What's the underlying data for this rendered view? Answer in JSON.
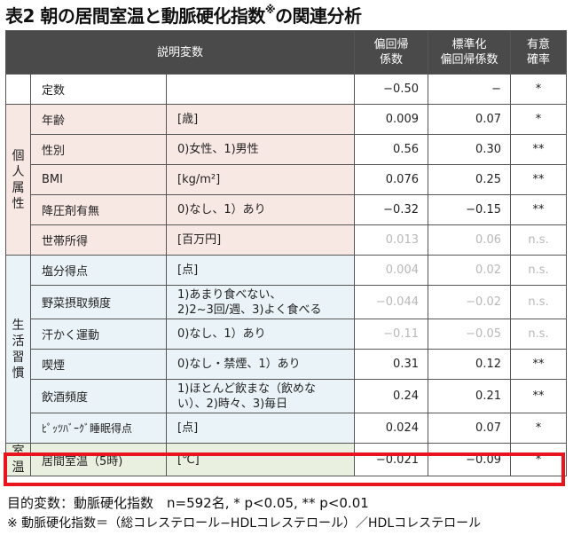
{
  "title": {
    "main": "表2 朝の居間室温と動脈硬化指数",
    "mark": "※",
    "suffix": "の関連分析"
  },
  "header": {
    "desc": "説明変数",
    "coef": [
      "偏回帰",
      "係数"
    ],
    "std": [
      "標準化",
      "偏回帰係数"
    ],
    "sig": [
      "有意",
      "確率"
    ]
  },
  "groups": {
    "individual": "個人属性",
    "lifestyle": "生活習慣",
    "room": "室温"
  },
  "rows": [
    {
      "name": "定数",
      "unit": "",
      "coef": "−0.50",
      "std": "−",
      "sig": "*"
    },
    {
      "name": "年齢",
      "unit": "[歳]",
      "coef": "0.009",
      "std": "0.07",
      "sig": "*"
    },
    {
      "name": "性別",
      "unit": "0)女性、1)男性",
      "coef": "0.56",
      "std": "0.30",
      "sig": "**"
    },
    {
      "name": "BMI",
      "unit": "[kg/m²]",
      "coef": "0.076",
      "std": "0.25",
      "sig": "**"
    },
    {
      "name": "降圧剤有無",
      "unit": "0)なし、1）あり",
      "coef": "−0.32",
      "std": "−0.15",
      "sig": "**"
    },
    {
      "name": "世帯所得",
      "unit": "[百万円]",
      "coef": "0.013",
      "std": "0.06",
      "sig": "n.s."
    },
    {
      "name": "塩分得点",
      "unit": "[点]",
      "coef": "0.004",
      "std": "0.02",
      "sig": "n.s."
    },
    {
      "name": "野菜摂取頻度",
      "unit": [
        "1)あまり食べない、",
        "2)2~3回/週、3)よく食べる"
      ],
      "coef": "−0.044",
      "std": "−0.02",
      "sig": "n.s."
    },
    {
      "name": "汗かく運動",
      "unit": "0)なし、1）あり",
      "coef": "−0.11",
      "std": "−0.05",
      "sig": "n.s."
    },
    {
      "name": "喫煙",
      "unit": "0)なし・禁煙、1）あり",
      "coef": "0.31",
      "std": "0.12",
      "sig": "**"
    },
    {
      "name": "飲酒頻度",
      "unit": [
        "1)ほとんど飲まな（飲めな",
        "い）、2)時々、3)毎日"
      ],
      "coef": "0.24",
      "std": "0.21",
      "sig": "**"
    },
    {
      "name": "ﾋﾟｯﾂﾊﾞｰｸﾞ睡眠得点",
      "unit": "[点]",
      "coef": "0.024",
      "std": "0.07",
      "sig": "*"
    },
    {
      "name": "居間室温（5時)",
      "unit": "[℃]",
      "coef": "−0.021",
      "std": "−0.09",
      "sig": "*"
    }
  ],
  "footnotes": {
    "line1": "目的変数：動脈硬化指数　n=592名,  * p<0.05, ** p<0.01",
    "line2": "※ 動脈硬化指数＝（総コレステロール−HDLコレステロール）／HDLコレステロール"
  },
  "colors": {
    "header_bg": "#4a4a4a",
    "individual_bg": "#f8e8e4",
    "lifestyle_bg": "#eaf3f8",
    "room_bg": "#e9f0df",
    "highlight": "#e8141e",
    "not_significant_text": "#b8b8b8"
  }
}
